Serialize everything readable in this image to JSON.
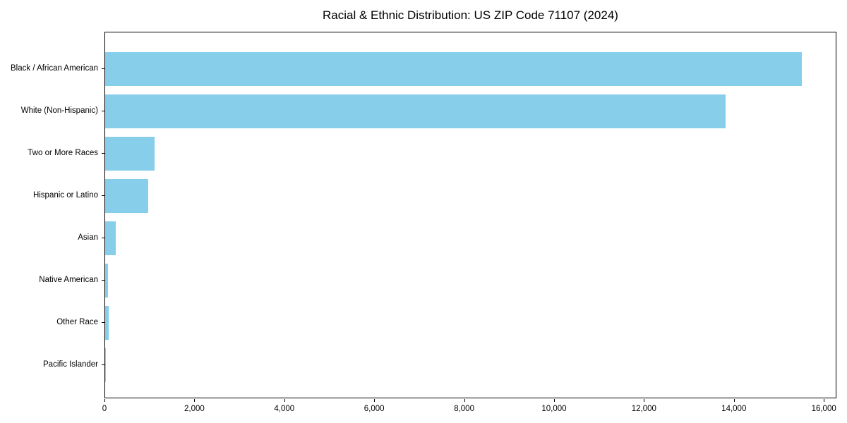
{
  "chart_data": {
    "type": "bar",
    "orientation": "horizontal",
    "title": "Racial & Ethnic Distribution: US ZIP Code 71107 (2024)",
    "categories": [
      "Black / African American",
      "White (Non-Hispanic)",
      "Two or More Races",
      "Hispanic or Latino",
      "Asian",
      "Native American",
      "Other Race",
      "Pacific Islander"
    ],
    "values": [
      15500,
      13800,
      1100,
      950,
      230,
      70,
      80,
      10
    ],
    "xlabel": "",
    "ylabel": "",
    "xlim": [
      0,
      16280
    ],
    "xticks": [
      0,
      2000,
      4000,
      6000,
      8000,
      10000,
      12000,
      14000,
      16000
    ],
    "xtick_labels": [
      "0",
      "2,000",
      "4,000",
      "6,000",
      "8,000",
      "10,000",
      "12,000",
      "14,000",
      "16,000"
    ],
    "bar_color": "#87CEEB",
    "frame_color": "#000000",
    "background_color": "#ffffff",
    "grid": false,
    "legend": null
  }
}
